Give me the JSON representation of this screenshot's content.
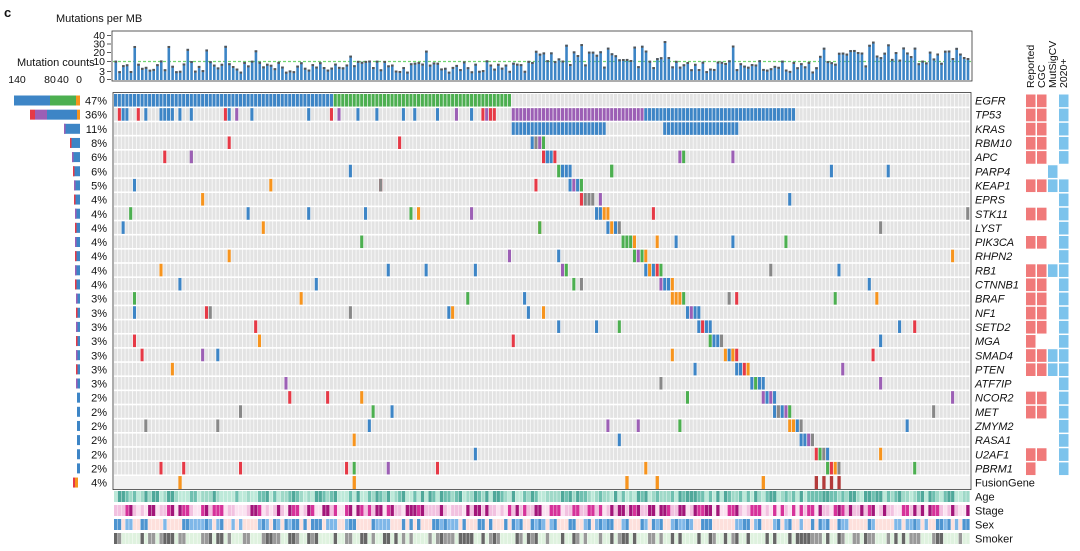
{
  "panel_label": "c",
  "chart_data": {
    "type": "heatmap",
    "title": "Mutations per MB",
    "tmb": {
      "ylabel": "Mutations per MB",
      "ticks": [
        "40",
        "30",
        "20",
        "10",
        "3",
        "0"
      ],
      "threshold_label": "10"
    },
    "counts_axis": {
      "title": "Mutation counts",
      "ticks": [
        "140",
        "80",
        "40",
        "0"
      ]
    },
    "genes": [
      {
        "name": "EGFR",
        "pct": "47%",
        "reported": true,
        "cgc": true,
        "mutsig": false,
        "cv2020": true
      },
      {
        "name": "TP53",
        "pct": "36%",
        "reported": true,
        "cgc": true,
        "mutsig": false,
        "cv2020": true
      },
      {
        "name": "KRAS",
        "pct": "11%",
        "reported": true,
        "cgc": true,
        "mutsig": false,
        "cv2020": true
      },
      {
        "name": "RBM10",
        "pct": "8%",
        "reported": true,
        "cgc": true,
        "mutsig": false,
        "cv2020": true
      },
      {
        "name": "APC",
        "pct": "6%",
        "reported": true,
        "cgc": true,
        "mutsig": false,
        "cv2020": true
      },
      {
        "name": "PARP4",
        "pct": "6%",
        "reported": false,
        "cgc": false,
        "mutsig": true,
        "cv2020": false
      },
      {
        "name": "KEAP1",
        "pct": "5%",
        "reported": true,
        "cgc": true,
        "mutsig": true,
        "cv2020": true
      },
      {
        "name": "EPRS",
        "pct": "4%",
        "reported": false,
        "cgc": false,
        "mutsig": false,
        "cv2020": true
      },
      {
        "name": "STK11",
        "pct": "4%",
        "reported": true,
        "cgc": true,
        "mutsig": false,
        "cv2020": true
      },
      {
        "name": "LYST",
        "pct": "4%",
        "reported": false,
        "cgc": false,
        "mutsig": false,
        "cv2020": true
      },
      {
        "name": "PIK3CA",
        "pct": "4%",
        "reported": true,
        "cgc": true,
        "mutsig": false,
        "cv2020": true
      },
      {
        "name": "RHPN2",
        "pct": "4%",
        "reported": false,
        "cgc": false,
        "mutsig": false,
        "cv2020": true
      },
      {
        "name": "RB1",
        "pct": "4%",
        "reported": true,
        "cgc": true,
        "mutsig": true,
        "cv2020": true
      },
      {
        "name": "CTNNB1",
        "pct": "4%",
        "reported": true,
        "cgc": true,
        "mutsig": false,
        "cv2020": true
      },
      {
        "name": "BRAF",
        "pct": "3%",
        "reported": true,
        "cgc": true,
        "mutsig": false,
        "cv2020": true
      },
      {
        "name": "NF1",
        "pct": "3%",
        "reported": true,
        "cgc": true,
        "mutsig": false,
        "cv2020": true
      },
      {
        "name": "SETD2",
        "pct": "3%",
        "reported": true,
        "cgc": true,
        "mutsig": false,
        "cv2020": true
      },
      {
        "name": "MGA",
        "pct": "3%",
        "reported": true,
        "cgc": false,
        "mutsig": false,
        "cv2020": true
      },
      {
        "name": "SMAD4",
        "pct": "3%",
        "reported": true,
        "cgc": true,
        "mutsig": true,
        "cv2020": true
      },
      {
        "name": "PTEN",
        "pct": "3%",
        "reported": true,
        "cgc": true,
        "mutsig": true,
        "cv2020": true
      },
      {
        "name": "ATF7IP",
        "pct": "3%",
        "reported": false,
        "cgc": false,
        "mutsig": false,
        "cv2020": true
      },
      {
        "name": "NCOR2",
        "pct": "2%",
        "reported": true,
        "cgc": true,
        "mutsig": false,
        "cv2020": true
      },
      {
        "name": "MET",
        "pct": "2%",
        "reported": true,
        "cgc": true,
        "mutsig": false,
        "cv2020": true
      },
      {
        "name": "ZMYM2",
        "pct": "2%",
        "reported": false,
        "cgc": false,
        "mutsig": false,
        "cv2020": true
      },
      {
        "name": "RASA1",
        "pct": "2%",
        "reported": false,
        "cgc": false,
        "mutsig": false,
        "cv2020": true
      },
      {
        "name": "U2AF1",
        "pct": "2%",
        "reported": true,
        "cgc": true,
        "mutsig": false,
        "cv2020": true
      },
      {
        "name": "PBRM1",
        "pct": "2%",
        "reported": true,
        "cgc": false,
        "mutsig": false,
        "cv2020": true
      }
    ],
    "fusion": {
      "name": "FusionGene",
      "pct": "4%"
    },
    "annotation_tracks": [
      "Age",
      "Stage",
      "Sex",
      "Smoker"
    ],
    "annotation_headers": [
      "Reported",
      "CGC",
      "MutSigCV",
      "2020+"
    ],
    "n_samples": 226,
    "colors": {
      "missense": "#3d85c6",
      "inframe": "#4caf50",
      "truncating": "#9c5fb5",
      "nonsense": "#e63946",
      "splice": "#f7941d",
      "other": "#888888",
      "cell_bg": "#e3e3e3",
      "reported_fill": "#f07a7a",
      "sig_fill": "#7cc3ec",
      "threshold": "#6fd46f"
    }
  }
}
